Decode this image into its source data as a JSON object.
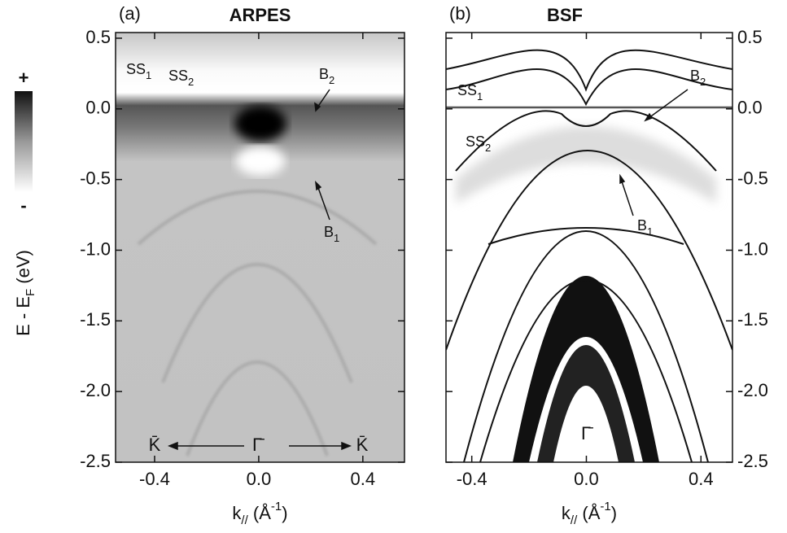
{
  "chart_data": [
    {
      "type": "image",
      "panel_label": "(a)",
      "title": "ARPES",
      "xlabel": [
        "k",
        "//",
        " (Å",
        "-1",
        ")"
      ],
      "ylabel": [
        "E - E",
        "F",
        " (eV)"
      ],
      "xlim": [
        -0.55,
        0.56
      ],
      "ylim": [
        -2.5,
        0.54
      ],
      "xticks": [
        -0.4,
        {
          "value": 0,
          "label": "0.0"
        },
        0.4
      ],
      "yticks": [
        0.5,
        {
          "value": 0,
          "label": "0.0"
        },
        -0.5,
        {
          "value": -1,
          "label": "-1.0"
        },
        -1.5,
        {
          "value": -2,
          "label": "-2.0"
        },
        -2.5
      ],
      "colorbar_labels": [
        "+",
        "-"
      ],
      "annotations": [
        {
          "text": "SS",
          "sub": "1"
        },
        {
          "text": "SS",
          "sub": "2"
        },
        {
          "text": "B",
          "sub": "2"
        },
        {
          "text": "B",
          "sub": "1"
        },
        {
          "text": "K̄"
        },
        {
          "text": "Γ̄"
        },
        {
          "text": "K̄"
        }
      ]
    },
    {
      "type": "image",
      "panel_label": "(b)",
      "title": "BSF",
      "xlabel": [
        "k",
        "//",
        " (Å",
        "-1",
        ")"
      ],
      "xlim": [
        -0.49,
        0.51
      ],
      "ylim": [
        -2.5,
        0.54
      ],
      "xticks": [
        -0.4,
        {
          "value": 0,
          "label": "0.0"
        },
        0.4
      ],
      "yticks": [
        0.5,
        {
          "value": 0,
          "label": "0.0"
        },
        -0.5,
        {
          "value": -1,
          "label": "-1.0"
        },
        -1.5,
        {
          "value": -2,
          "label": "-2.0"
        },
        -2.5
      ],
      "annotations": [
        {
          "text": "SS",
          "sub": "1"
        },
        {
          "text": "SS",
          "sub": "2"
        },
        {
          "text": "B",
          "sub": "2"
        },
        {
          "text": "B",
          "sub": "1"
        },
        {
          "text": "Γ̄"
        }
      ]
    }
  ]
}
